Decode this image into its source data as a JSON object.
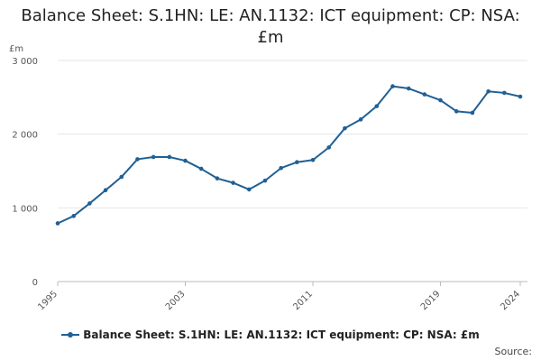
{
  "chart_data": {
    "type": "line",
    "title": "Balance Sheet: S.1HN: LE: AN.1132: ICT equipment: CP: NSA: £m",
    "ylabel": "£m",
    "xlabel": "",
    "ylim": [
      0,
      3000
    ],
    "xlim": [
      1995,
      2024
    ],
    "y_ticks": [
      0,
      1000,
      2000,
      3000
    ],
    "y_tick_labels": [
      "0",
      "1 000",
      "2 000",
      "3 000"
    ],
    "x_ticks": [
      1995,
      2003,
      2011,
      2019,
      2024
    ],
    "x_tick_labels": [
      "1995",
      "2003",
      "2011",
      "2019",
      "2024"
    ],
    "grid": true,
    "legend_position": "bottom",
    "series_color": "#206095",
    "series": [
      {
        "name": "Balance Sheet: S.1HN: LE: AN.1132: ICT equipment: CP: NSA: £m",
        "x": [
          1995,
          1996,
          1997,
          1998,
          1999,
          2000,
          2001,
          2002,
          2003,
          2004,
          2005,
          2006,
          2007,
          2008,
          2009,
          2010,
          2011,
          2012,
          2013,
          2014,
          2015,
          2016,
          2017,
          2018,
          2019,
          2020,
          2021,
          2022,
          2023,
          2024
        ],
        "values": [
          790,
          890,
          1060,
          1240,
          1420,
          1660,
          1690,
          1690,
          1640,
          1530,
          1400,
          1340,
          1250,
          1370,
          1540,
          1620,
          1650,
          1820,
          2080,
          2200,
          2380,
          2650,
          2620,
          2540,
          2460,
          2310,
          2290,
          2580,
          2560,
          2510
        ]
      }
    ]
  },
  "legend": {
    "label": "Balance Sheet: S.1HN: LE: AN.1132: ICT equipment: CP: NSA: £m"
  },
  "source": {
    "label": "Source:"
  }
}
